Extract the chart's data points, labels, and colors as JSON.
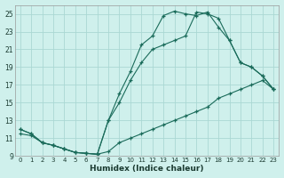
{
  "xlabel": "Humidex (Indice chaleur)",
  "bg_color": "#cff0ec",
  "grid_color": "#aad8d3",
  "line_color": "#1a6b5a",
  "xlim": [
    -0.5,
    23.5
  ],
  "ylim": [
    9,
    26
  ],
  "xticks": [
    0,
    1,
    2,
    3,
    4,
    5,
    6,
    7,
    8,
    9,
    10,
    11,
    12,
    13,
    14,
    15,
    16,
    17,
    18,
    19,
    20,
    21,
    22,
    23
  ],
  "yticks": [
    9,
    11,
    13,
    15,
    17,
    19,
    21,
    23,
    25
  ],
  "line1_x": [
    0,
    1,
    2,
    3,
    4,
    5,
    6,
    7,
    8,
    9,
    10,
    11,
    12,
    13,
    14,
    15,
    16,
    17,
    18,
    19,
    20,
    21,
    22,
    23
  ],
  "line1_y": [
    12.0,
    11.5,
    10.5,
    10.2,
    9.8,
    9.4,
    9.3,
    9.2,
    13.0,
    16.0,
    18.5,
    21.5,
    22.5,
    24.8,
    25.3,
    25.0,
    24.8,
    25.2,
    23.5,
    22.0,
    19.5,
    19.0,
    18.0,
    16.5
  ],
  "line2_x": [
    0,
    1,
    2,
    3,
    4,
    5,
    6,
    7,
    8,
    9,
    10,
    11,
    12,
    13,
    14,
    15,
    16,
    17,
    18,
    19,
    20,
    21,
    22,
    23
  ],
  "line2_y": [
    12.0,
    11.5,
    10.5,
    10.2,
    9.8,
    9.4,
    9.3,
    9.2,
    13.0,
    15.0,
    17.5,
    19.5,
    21.0,
    21.5,
    22.0,
    22.5,
    25.2,
    25.0,
    24.5,
    22.0,
    19.5,
    19.0,
    18.0,
    16.5
  ],
  "line3_x": [
    0,
    1,
    2,
    3,
    4,
    5,
    6,
    7,
    8,
    9,
    10,
    11,
    12,
    13,
    14,
    15,
    16,
    17,
    18,
    19,
    20,
    21,
    22,
    23
  ],
  "line3_y": [
    11.5,
    11.3,
    10.5,
    10.2,
    9.8,
    9.4,
    9.3,
    9.2,
    9.5,
    10.5,
    11.0,
    11.5,
    12.0,
    12.5,
    13.0,
    13.5,
    14.0,
    14.5,
    15.5,
    16.0,
    16.5,
    17.0,
    17.5,
    16.5
  ]
}
